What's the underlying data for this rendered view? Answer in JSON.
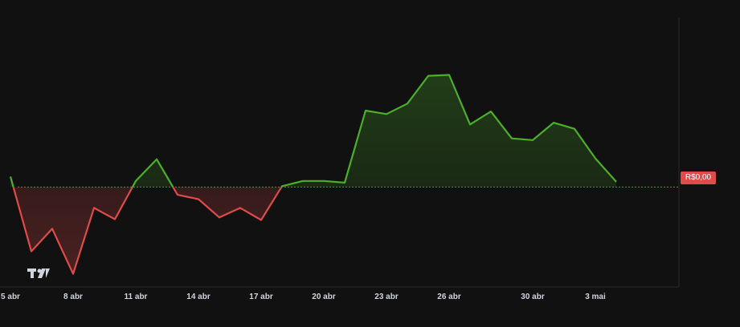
{
  "chart_data": {
    "type": "area",
    "title": "",
    "xlabel": "",
    "ylabel": "",
    "baseline": 0,
    "baseline_label": "R$0,00",
    "x_tick_labels": [
      "5 abr",
      "8 abr",
      "11 abr",
      "14 abr",
      "17 abr",
      "20 abr",
      "23 abr",
      "26 abr",
      "30 abr",
      "3 mai"
    ],
    "x_tick_values": [
      0,
      3,
      6,
      9,
      12,
      15,
      18,
      21,
      25,
      28
    ],
    "x": [
      0,
      1,
      2,
      3,
      4,
      5,
      6,
      7,
      8,
      9,
      10,
      11,
      12,
      13,
      14,
      15,
      16,
      17,
      18,
      19,
      20,
      21,
      22,
      23,
      24,
      25,
      26,
      27,
      28,
      29
    ],
    "values": [
      0.12,
      -0.74,
      -0.48,
      -1.0,
      -0.24,
      -0.37,
      0.07,
      0.32,
      -0.09,
      -0.14,
      -0.35,
      -0.24,
      -0.38,
      0.01,
      0.07,
      0.07,
      0.05,
      0.88,
      0.84,
      0.96,
      1.28,
      1.29,
      0.72,
      0.87,
      0.56,
      0.54,
      0.74,
      0.67,
      0.33,
      0.06
    ],
    "ylim": [
      -1.15,
      1.95
    ],
    "xlim": [
      -0.5,
      32
    ],
    "colors": {
      "positive": "#4caf2a",
      "negative": "#e04a4a",
      "background": "#111111",
      "tick_text": "#d1d4dc",
      "grid_line": "#2a2a2a"
    }
  },
  "logo": {
    "name": "TradingView"
  }
}
